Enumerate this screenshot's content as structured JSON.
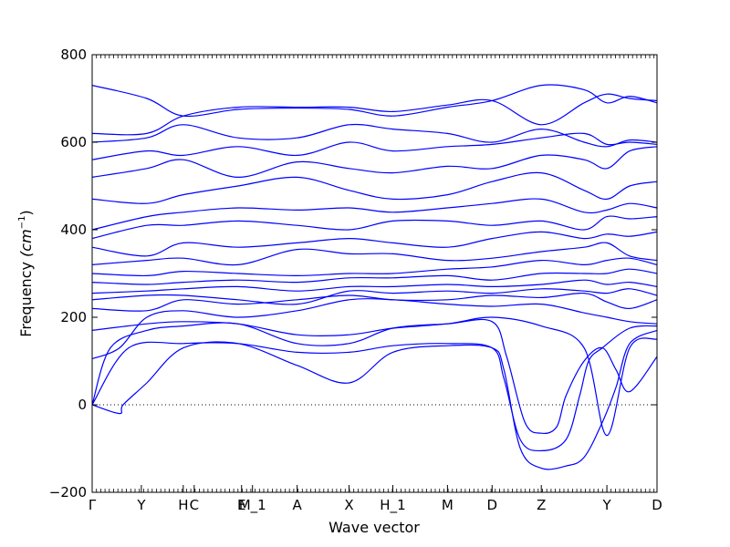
{
  "chart_data": {
    "type": "line",
    "title": "",
    "xlabel": "Wave vector",
    "ylabel": "Frequency",
    "ylabel_unit": "(cm",
    "ylabel_unit_exp": "−1",
    "ylabel_close": ")",
    "ylim": [
      -200,
      800
    ],
    "y_ticks": [
      -200,
      0,
      200,
      400,
      600,
      800
    ],
    "y_tick_labels": [
      "−200",
      "0",
      "200",
      "400",
      "600",
      "800"
    ],
    "xlim": [
      0,
      620
    ],
    "x_ticks": [
      {
        "label": "Γ",
        "x": 0
      },
      {
        "label": "Y",
        "x": 54
      },
      {
        "label": "H",
        "x": 100
      },
      {
        "label": "C",
        "x": 112
      },
      {
        "label": "E",
        "x": 164
      },
      {
        "label": "M_1",
        "x": 176
      },
      {
        "label": "A",
        "x": 225
      },
      {
        "label": "X",
        "x": 282
      },
      {
        "label": "H_1",
        "x": 330
      },
      {
        "label": "M",
        "x": 390
      },
      {
        "label": "D",
        "x": 439
      },
      {
        "label": "Z",
        "x": 493
      },
      {
        "label": "Y",
        "x": 565
      },
      {
        "label": "D",
        "x": 620
      }
    ],
    "zero_line": true,
    "line_color": "#0000ff",
    "branches": [
      {
        "x": [
          0,
          30,
          34,
          60,
          100,
          160,
          225,
          282,
          330,
          390,
          439,
          452,
          470,
          493,
          520,
          540,
          560,
          575,
          590,
          620
        ],
        "y": [
          0,
          -20,
          0,
          50,
          130,
          140,
          90,
          50,
          120,
          135,
          130,
          80,
          -100,
          -145,
          -140,
          -120,
          -40,
          40,
          140,
          170
        ]
      },
      {
        "x": [
          0,
          40,
          100,
          160,
          225,
          282,
          330,
          390,
          439,
          452,
          470,
          493,
          520,
          535,
          545,
          560,
          590,
          620
        ],
        "y": [
          0,
          130,
          140,
          140,
          120,
          120,
          135,
          140,
          130,
          60,
          -80,
          -105,
          -80,
          20,
          100,
          130,
          175,
          180
        ]
      },
      {
        "x": [
          0,
          20,
          60,
          100,
          160,
          225,
          282,
          330,
          390,
          439,
          455,
          475,
          493,
          510,
          520,
          540,
          560,
          575,
          590,
          620
        ],
        "y": [
          0,
          130,
          170,
          180,
          185,
          140,
          140,
          175,
          185,
          190,
          110,
          -40,
          -65,
          -50,
          20,
          100,
          130,
          80,
          30,
          110
        ]
      },
      {
        "x": [
          0,
          60,
          100,
          160,
          225,
          282,
          330,
          390,
          439,
          493,
          540,
          565,
          590,
          620
        ],
        "y": [
          170,
          185,
          190,
          185,
          160,
          160,
          175,
          185,
          200,
          180,
          130,
          -70,
          130,
          150
        ]
      },
      {
        "x": [
          0,
          30,
          60,
          100,
          160,
          225,
          282,
          330,
          390,
          439,
          493,
          540,
          565,
          590,
          620
        ],
        "y": [
          105,
          130,
          200,
          215,
          200,
          215,
          240,
          240,
          230,
          225,
          230,
          210,
          200,
          190,
          185
        ]
      },
      {
        "x": [
          0,
          60,
          100,
          160,
          225,
          282,
          330,
          390,
          439,
          493,
          540,
          565,
          590,
          620
        ],
        "y": [
          220,
          215,
          240,
          230,
          240,
          250,
          240,
          240,
          250,
          245,
          255,
          235,
          220,
          240
        ]
      },
      {
        "x": [
          0,
          60,
          100,
          160,
          225,
          282,
          330,
          390,
          439,
          493,
          540,
          565,
          590,
          620
        ],
        "y": [
          240,
          250,
          250,
          240,
          230,
          260,
          255,
          260,
          255,
          265,
          260,
          255,
          265,
          250
        ]
      },
      {
        "x": [
          0,
          60,
          100,
          160,
          225,
          282,
          330,
          390,
          439,
          493,
          540,
          565,
          590,
          620
        ],
        "y": [
          255,
          260,
          265,
          270,
          260,
          270,
          270,
          275,
          270,
          275,
          285,
          275,
          280,
          270
        ]
      },
      {
        "x": [
          0,
          60,
          100,
          160,
          225,
          282,
          330,
          390,
          439,
          493,
          540,
          565,
          590,
          620
        ],
        "y": [
          280,
          275,
          280,
          285,
          280,
          290,
          290,
          295,
          285,
          300,
          300,
          300,
          310,
          300
        ]
      },
      {
        "x": [
          0,
          60,
          100,
          160,
          225,
          282,
          330,
          390,
          439,
          493,
          540,
          565,
          590,
          620
        ],
        "y": [
          300,
          295,
          305,
          300,
          295,
          300,
          300,
          310,
          315,
          330,
          320,
          330,
          335,
          320
        ]
      },
      {
        "x": [
          0,
          60,
          100,
          160,
          225,
          282,
          330,
          390,
          439,
          493,
          540,
          565,
          590,
          620
        ],
        "y": [
          320,
          330,
          335,
          320,
          355,
          345,
          345,
          330,
          335,
          350,
          360,
          370,
          340,
          330
        ]
      },
      {
        "x": [
          0,
          60,
          100,
          160,
          225,
          282,
          330,
          390,
          439,
          493,
          540,
          565,
          590,
          620
        ],
        "y": [
          360,
          340,
          370,
          360,
          370,
          380,
          370,
          360,
          380,
          395,
          380,
          390,
          385,
          395
        ]
      },
      {
        "x": [
          0,
          60,
          100,
          160,
          225,
          282,
          330,
          390,
          439,
          493,
          540,
          565,
          590,
          620
        ],
        "y": [
          380,
          410,
          410,
          420,
          410,
          400,
          420,
          420,
          410,
          420,
          400,
          430,
          425,
          430
        ]
      },
      {
        "x": [
          0,
          60,
          100,
          160,
          225,
          282,
          330,
          390,
          439,
          493,
          540,
          565,
          590,
          620
        ],
        "y": [
          400,
          430,
          440,
          450,
          445,
          450,
          440,
          450,
          460,
          470,
          440,
          445,
          460,
          450
        ]
      },
      {
        "x": [
          0,
          60,
          100,
          160,
          225,
          282,
          330,
          390,
          439,
          493,
          540,
          565,
          590,
          620
        ],
        "y": [
          470,
          460,
          480,
          500,
          520,
          490,
          470,
          480,
          510,
          530,
          490,
          470,
          500,
          510
        ]
      },
      {
        "x": [
          0,
          60,
          100,
          160,
          225,
          282,
          330,
          390,
          439,
          493,
          540,
          565,
          590,
          620
        ],
        "y": [
          520,
          540,
          560,
          520,
          555,
          540,
          530,
          545,
          540,
          570,
          560,
          540,
          580,
          590
        ]
      },
      {
        "x": [
          0,
          60,
          100,
          160,
          225,
          282,
          330,
          390,
          439,
          493,
          540,
          565,
          590,
          620
        ],
        "y": [
          560,
          580,
          570,
          590,
          570,
          600,
          580,
          590,
          595,
          610,
          620,
          595,
          600,
          595
        ]
      },
      {
        "x": [
          0,
          60,
          100,
          160,
          225,
          282,
          330,
          390,
          439,
          493,
          540,
          565,
          590,
          620
        ],
        "y": [
          600,
          610,
          640,
          610,
          610,
          640,
          630,
          620,
          600,
          630,
          600,
          590,
          605,
          600
        ]
      },
      {
        "x": [
          0,
          60,
          100,
          160,
          225,
          282,
          330,
          390,
          439,
          493,
          540,
          565,
          590,
          620
        ],
        "y": [
          620,
          620,
          660,
          680,
          680,
          680,
          670,
          685,
          695,
          640,
          690,
          710,
          700,
          695
        ]
      },
      {
        "x": [
          0,
          60,
          100,
          160,
          225,
          282,
          330,
          390,
          439,
          493,
          540,
          565,
          590,
          620
        ],
        "y": [
          730,
          700,
          660,
          675,
          678,
          675,
          660,
          680,
          695,
          730,
          720,
          690,
          705,
          690
        ]
      }
    ]
  }
}
